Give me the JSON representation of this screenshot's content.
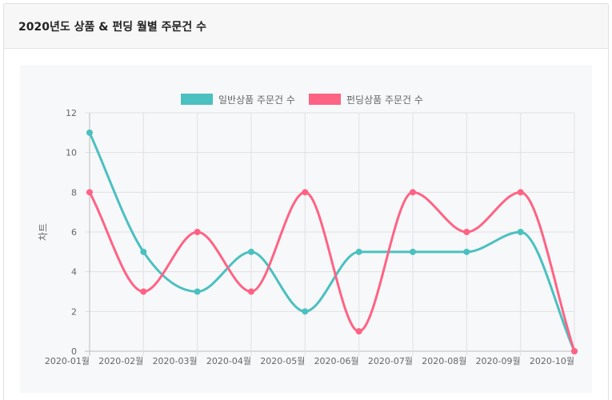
{
  "header": {
    "title": "2020년도 상품 & 펀딩 월별 주문건 수"
  },
  "chart_data": {
    "type": "line",
    "categories": [
      "2020-01월",
      "2020-02월",
      "2020-03월",
      "2020-04월",
      "2020-05월",
      "2020-06월",
      "2020-07월",
      "2020-08월",
      "2020-09월",
      "2020-10월"
    ],
    "series": [
      {
        "name": "일반상품 주문건 수",
        "color": "#4bc0c0",
        "values": [
          11,
          5,
          3,
          5,
          2,
          5,
          5,
          5,
          6,
          0
        ]
      },
      {
        "name": "펀딩상품 주문건 수",
        "color": "#ff6384",
        "values": [
          8,
          3,
          6,
          3,
          8,
          1,
          8,
          6,
          8,
          0
        ]
      }
    ],
    "ylabel": "차트",
    "xlabel": "",
    "ylim": [
      0,
      12
    ],
    "yticks": [
      0,
      2,
      4,
      6,
      8,
      10,
      12
    ],
    "grid": true,
    "legend": "top-center",
    "curve": "smooth"
  }
}
